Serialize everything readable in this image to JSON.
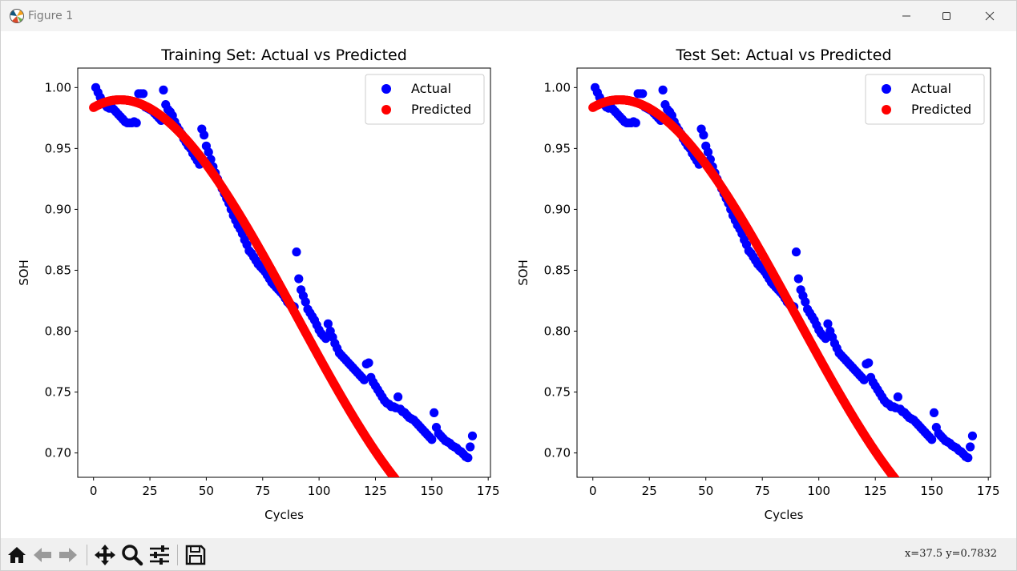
{
  "window": {
    "title": "Figure 1"
  },
  "toolbar": {
    "buttons": [
      "home-icon",
      "back-arrow-icon",
      "forward-arrow-icon",
      "pan-icon",
      "zoom-icon",
      "configure-subplots-icon",
      "save-icon"
    ],
    "coords_text": "x=37.5  y=0.7832"
  },
  "colors": {
    "actual": "#0000ff",
    "predicted": "#ff0000"
  },
  "chart_data": [
    {
      "type": "scatter",
      "title": "Training Set: Actual vs Predicted",
      "xlabel": "Cycles",
      "ylabel": "SOH",
      "xlim": [
        -7,
        176
      ],
      "ylim": [
        0.68,
        1.016
      ],
      "xticks": [
        0,
        25,
        50,
        75,
        100,
        125,
        150,
        175
      ],
      "yticks": [
        0.7,
        0.75,
        0.8,
        0.85,
        0.9,
        0.95,
        1.0
      ],
      "xtick_labels": [
        "0",
        "25",
        "50",
        "75",
        "100",
        "125",
        "150",
        "175"
      ],
      "ytick_labels": [
        "0.70",
        "0.75",
        "0.80",
        "0.85",
        "0.90",
        "0.95",
        "1.00"
      ],
      "legend": [
        "Actual",
        "Predicted"
      ],
      "legend_position": "top-right",
      "series": [
        {
          "name": "Actual",
          "x": [
            1,
            2,
            3,
            4,
            5,
            6,
            7,
            8,
            9,
            10,
            11,
            12,
            13,
            14,
            15,
            16,
            17,
            18,
            19,
            20,
            21,
            22,
            23,
            24,
            25,
            26,
            27,
            28,
            29,
            30,
            31,
            32,
            33,
            34,
            35,
            36,
            37,
            38,
            39,
            40,
            41,
            42,
            43,
            44,
            45,
            46,
            47,
            48,
            49,
            50,
            51,
            52,
            53,
            54,
            55,
            56,
            57,
            58,
            59,
            60,
            61,
            62,
            63,
            64,
            65,
            66,
            67,
            68,
            69,
            70,
            71,
            72,
            73,
            74,
            75,
            76,
            77,
            78,
            79,
            80,
            81,
            82,
            83,
            84,
            85,
            86,
            87,
            88,
            89,
            90,
            91,
            92,
            93,
            94,
            95,
            96,
            97,
            98,
            99,
            100,
            101,
            102,
            103,
            104,
            105,
            106,
            107,
            108,
            109,
            110,
            111,
            112,
            113,
            114,
            115,
            116,
            117,
            118,
            119,
            120,
            121,
            122,
            123,
            124,
            125,
            126,
            127,
            128,
            129,
            130,
            131,
            132,
            133,
            134,
            135,
            136,
            137,
            138,
            139,
            140,
            141,
            142,
            143,
            144,
            145,
            146,
            147,
            148,
            149,
            150,
            151,
            152,
            153,
            154,
            155,
            156,
            157,
            158,
            159,
            160,
            161,
            162,
            163,
            164,
            165,
            166,
            167,
            168
          ],
          "y": [
            1.0,
            0.996,
            0.992,
            0.989,
            0.986,
            0.984,
            0.983,
            0.984,
            0.982,
            0.98,
            0.978,
            0.976,
            0.974,
            0.972,
            0.971,
            0.971,
            0.971,
            0.972,
            0.971,
            0.995,
            0.995,
            0.995,
            0.984,
            0.983,
            0.982,
            0.981,
            0.979,
            0.977,
            0.975,
            0.973,
            0.998,
            0.986,
            0.982,
            0.98,
            0.977,
            0.972,
            0.968,
            0.965,
            0.962,
            0.958,
            0.955,
            0.952,
            0.95,
            0.946,
            0.943,
            0.94,
            0.937,
            0.966,
            0.961,
            0.952,
            0.947,
            0.941,
            0.935,
            0.93,
            0.925,
            0.921,
            0.917,
            0.913,
            0.909,
            0.905,
            0.9,
            0.895,
            0.891,
            0.887,
            0.884,
            0.88,
            0.875,
            0.871,
            0.866,
            0.864,
            0.861,
            0.858,
            0.855,
            0.853,
            0.851,
            0.849,
            0.846,
            0.843,
            0.84,
            0.838,
            0.836,
            0.834,
            0.832,
            0.83,
            0.827,
            0.824,
            0.822,
            0.821,
            0.82,
            0.865,
            0.843,
            0.834,
            0.829,
            0.824,
            0.818,
            0.815,
            0.812,
            0.809,
            0.805,
            0.801,
            0.798,
            0.796,
            0.794,
            0.806,
            0.8,
            0.795,
            0.79,
            0.786,
            0.782,
            0.78,
            0.778,
            0.776,
            0.774,
            0.772,
            0.77,
            0.768,
            0.766,
            0.764,
            0.762,
            0.76,
            0.773,
            0.774,
            0.762,
            0.758,
            0.755,
            0.752,
            0.749,
            0.746,
            0.743,
            0.741,
            0.74,
            0.738,
            0.738,
            0.737,
            0.746,
            0.736,
            0.734,
            0.733,
            0.731,
            0.729,
            0.728,
            0.727,
            0.725,
            0.723,
            0.721,
            0.719,
            0.717,
            0.715,
            0.713,
            0.711,
            0.733,
            0.721,
            0.716,
            0.714,
            0.712,
            0.71,
            0.709,
            0.708,
            0.706,
            0.705,
            0.704,
            0.702,
            0.701,
            0.699,
            0.697,
            0.696,
            0.705,
            0.714
          ]
        },
        {
          "name": "Predicted",
          "model": "cubic fit",
          "x_range": [
            0,
            168,
            0.25
          ],
          "coefficients": [
            0.98358,
            0.001107,
            -5.0075e-05,
            1.8515e-07
          ]
        }
      ]
    },
    {
      "type": "scatter",
      "title": "Test Set: Actual vs Predicted",
      "xlabel": "Cycles",
      "ylabel": "SOH",
      "xlim": [
        -7,
        176
      ],
      "ylim": [
        0.68,
        1.016
      ],
      "xticks": [
        0,
        25,
        50,
        75,
        100,
        125,
        150,
        175
      ],
      "yticks": [
        0.7,
        0.75,
        0.8,
        0.85,
        0.9,
        0.95,
        1.0
      ],
      "xtick_labels": [
        "0",
        "25",
        "50",
        "75",
        "100",
        "125",
        "150",
        "175"
      ],
      "ytick_labels": [
        "0.70",
        "0.75",
        "0.80",
        "0.85",
        "0.90",
        "0.95",
        "1.00"
      ],
      "legend": [
        "Actual",
        "Predicted"
      ],
      "legend_position": "top-right",
      "series": [
        {
          "name": "Actual",
          "x": [
            1,
            2,
            3,
            4,
            5,
            6,
            7,
            8,
            9,
            10,
            11,
            12,
            13,
            14,
            15,
            16,
            17,
            18,
            19,
            20,
            21,
            22,
            23,
            24,
            25,
            26,
            27,
            28,
            29,
            30,
            31,
            32,
            33,
            34,
            35,
            36,
            37,
            38,
            39,
            40,
            41,
            42,
            43,
            44,
            45,
            46,
            47,
            48,
            49,
            50,
            51,
            52,
            53,
            54,
            55,
            56,
            57,
            58,
            59,
            60,
            61,
            62,
            63,
            64,
            65,
            66,
            67,
            68,
            69,
            70,
            71,
            72,
            73,
            74,
            75,
            76,
            77,
            78,
            79,
            80,
            81,
            82,
            83,
            84,
            85,
            86,
            87,
            88,
            89,
            90,
            91,
            92,
            93,
            94,
            95,
            96,
            97,
            98,
            99,
            100,
            101,
            102,
            103,
            104,
            105,
            106,
            107,
            108,
            109,
            110,
            111,
            112,
            113,
            114,
            115,
            116,
            117,
            118,
            119,
            120,
            121,
            122,
            123,
            124,
            125,
            126,
            127,
            128,
            129,
            130,
            131,
            132,
            133,
            134,
            135,
            136,
            137,
            138,
            139,
            140,
            141,
            142,
            143,
            144,
            145,
            146,
            147,
            148,
            149,
            150,
            151,
            152,
            153,
            154,
            155,
            156,
            157,
            158,
            159,
            160,
            161,
            162,
            163,
            164,
            165,
            166,
            167,
            168
          ],
          "y": [
            1.0,
            0.996,
            0.992,
            0.989,
            0.986,
            0.984,
            0.983,
            0.984,
            0.982,
            0.98,
            0.978,
            0.976,
            0.974,
            0.972,
            0.971,
            0.971,
            0.971,
            0.972,
            0.971,
            0.995,
            0.995,
            0.995,
            0.984,
            0.983,
            0.982,
            0.981,
            0.979,
            0.977,
            0.975,
            0.973,
            0.998,
            0.986,
            0.982,
            0.98,
            0.977,
            0.972,
            0.968,
            0.965,
            0.962,
            0.958,
            0.955,
            0.952,
            0.95,
            0.946,
            0.943,
            0.94,
            0.937,
            0.966,
            0.961,
            0.952,
            0.947,
            0.941,
            0.935,
            0.93,
            0.925,
            0.921,
            0.917,
            0.913,
            0.909,
            0.905,
            0.9,
            0.895,
            0.891,
            0.887,
            0.884,
            0.88,
            0.875,
            0.871,
            0.866,
            0.864,
            0.861,
            0.858,
            0.855,
            0.853,
            0.851,
            0.849,
            0.846,
            0.843,
            0.84,
            0.838,
            0.836,
            0.834,
            0.832,
            0.83,
            0.827,
            0.824,
            0.822,
            0.821,
            0.82,
            0.865,
            0.843,
            0.834,
            0.829,
            0.824,
            0.818,
            0.815,
            0.812,
            0.809,
            0.805,
            0.801,
            0.798,
            0.796,
            0.794,
            0.806,
            0.8,
            0.795,
            0.79,
            0.786,
            0.782,
            0.78,
            0.778,
            0.776,
            0.774,
            0.772,
            0.77,
            0.768,
            0.766,
            0.764,
            0.762,
            0.76,
            0.773,
            0.774,
            0.762,
            0.758,
            0.755,
            0.752,
            0.749,
            0.746,
            0.743,
            0.741,
            0.74,
            0.738,
            0.738,
            0.737,
            0.746,
            0.736,
            0.734,
            0.733,
            0.731,
            0.729,
            0.728,
            0.727,
            0.725,
            0.723,
            0.721,
            0.719,
            0.717,
            0.715,
            0.713,
            0.711,
            0.733,
            0.721,
            0.716,
            0.714,
            0.712,
            0.71,
            0.709,
            0.708,
            0.706,
            0.705,
            0.704,
            0.702,
            0.701,
            0.699,
            0.697,
            0.696,
            0.705,
            0.714
          ]
        },
        {
          "name": "Predicted",
          "model": "cubic fit",
          "x_range": [
            0,
            168,
            0.25
          ],
          "coefficients": [
            0.98358,
            0.001107,
            -5.0075e-05,
            1.8515e-07
          ]
        }
      ]
    }
  ]
}
